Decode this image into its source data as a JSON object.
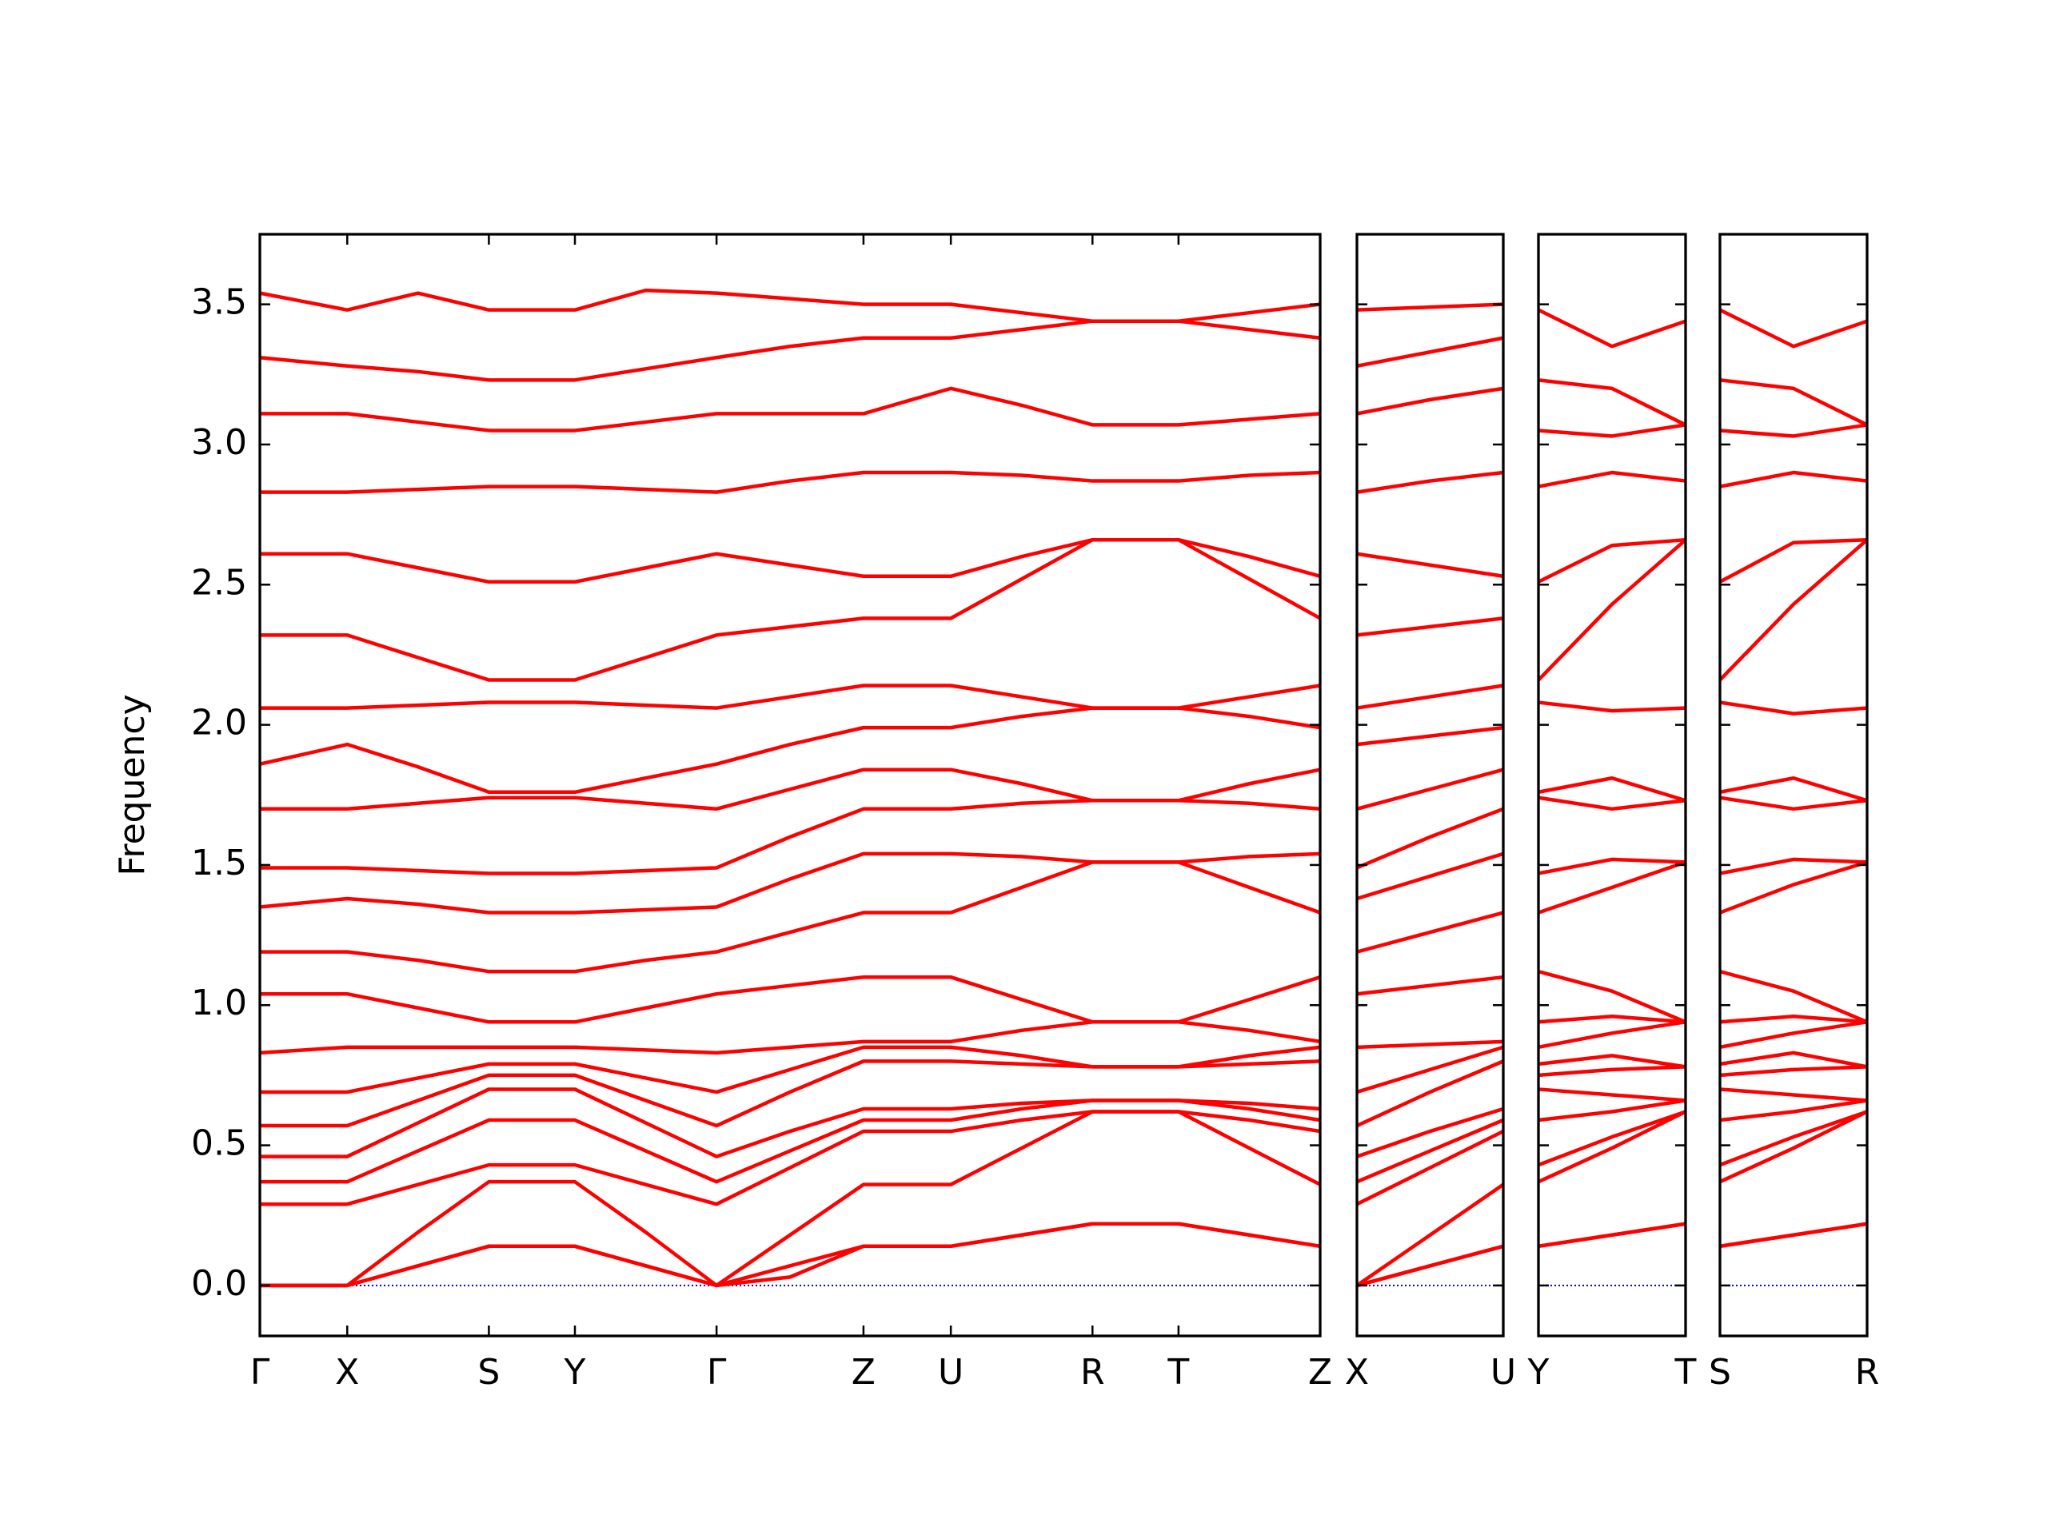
{
  "chart_data": [
    {
      "type": "line",
      "ylabel": "Frequency",
      "color": "#ff0000",
      "zero_line_color": "#0000cc",
      "x": [
        0,
        0.66,
        1.195,
        1.73,
        2.38,
        2.915,
        3.45,
        4.005,
        4.56,
        5.22,
        5.755,
        6.29,
        6.94,
        7.475,
        8.01
      ],
      "xlim": [
        0,
        8.01
      ],
      "xticks": [
        {
          "value": 0,
          "label": "Γ"
        },
        {
          "value": 0.66,
          "label": "X"
        },
        {
          "value": 1.73,
          "label": "S"
        },
        {
          "value": 2.38,
          "label": "Y"
        },
        {
          "value": 3.45,
          "label": "Γ"
        },
        {
          "value": 4.56,
          "label": "Z"
        },
        {
          "value": 5.22,
          "label": "U"
        },
        {
          "value": 6.29,
          "label": "R"
        },
        {
          "value": 6.94,
          "label": "T"
        },
        {
          "value": 8.01,
          "label": "Z"
        }
      ],
      "ylim": [
        -0.18,
        3.75
      ],
      "yticks": [
        {
          "value": 0,
          "label": "0.0"
        },
        0.5,
        {
          "value": 1,
          "label": "1.0"
        },
        1.5,
        {
          "value": 2,
          "label": "2.0"
        },
        2.5,
        {
          "value": 3,
          "label": "3.0"
        },
        3.5
      ],
      "series": [
        {
          "values": [
            0,
            0,
            0.07,
            0.14,
            0.14,
            0.07,
            0,
            0.07,
            0.14,
            0.14,
            0.18,
            0.22,
            0.22,
            0.18,
            0.14
          ]
        },
        {
          "values": [
            0,
            0,
            0.07,
            0.14,
            0.14,
            0.07,
            0,
            0.03,
            0.14,
            0.14,
            0.18,
            0.22,
            0.22,
            0.18,
            0.14
          ]
        },
        {
          "values": [
            0,
            0,
            0.19,
            0.37,
            0.37,
            0.19,
            0,
            0.18,
            0.36,
            0.36,
            0.49,
            0.62,
            0.62,
            0.49,
            0.36
          ]
        },
        {
          "values": [
            0.29,
            0.29,
            0.36,
            0.43,
            0.43,
            0.36,
            0.29,
            0.42,
            0.55,
            0.55,
            0.59,
            0.62,
            0.62,
            0.59,
            0.55
          ]
        },
        {
          "values": [
            0.37,
            0.37,
            0.48,
            0.59,
            0.59,
            0.48,
            0.37,
            0.48,
            0.59,
            0.59,
            0.63,
            0.66,
            0.66,
            0.63,
            0.59
          ]
        },
        {
          "values": [
            0.46,
            0.46,
            0.58,
            0.7,
            0.7,
            0.58,
            0.46,
            0.55,
            0.63,
            0.63,
            0.65,
            0.66,
            0.66,
            0.65,
            0.63
          ]
        },
        {
          "values": [
            0.57,
            0.57,
            0.66,
            0.75,
            0.75,
            0.66,
            0.57,
            0.69,
            0.8,
            0.8,
            0.79,
            0.78,
            0.78,
            0.79,
            0.8
          ]
        },
        {
          "values": [
            0.69,
            0.69,
            0.74,
            0.79,
            0.79,
            0.74,
            0.69,
            0.77,
            0.85,
            0.85,
            0.82,
            0.78,
            0.78,
            0.82,
            0.85
          ]
        },
        {
          "values": [
            0.83,
            0.85,
            0.85,
            0.85,
            0.85,
            0.84,
            0.83,
            0.85,
            0.87,
            0.87,
            0.91,
            0.94,
            0.94,
            0.91,
            0.87
          ]
        },
        {
          "values": [
            1.04,
            1.04,
            0.99,
            0.94,
            0.94,
            0.99,
            1.04,
            1.07,
            1.1,
            1.1,
            1.02,
            0.94,
            0.94,
            1.02,
            1.1
          ]
        },
        {
          "values": [
            1.19,
            1.19,
            1.16,
            1.12,
            1.12,
            1.16,
            1.19,
            1.26,
            1.33,
            1.33,
            1.42,
            1.51,
            1.51,
            1.42,
            1.33
          ]
        },
        {
          "values": [
            1.35,
            1.38,
            1.36,
            1.33,
            1.33,
            1.34,
            1.35,
            1.45,
            1.54,
            1.54,
            1.53,
            1.51,
            1.51,
            1.53,
            1.54
          ]
        },
        {
          "values": [
            1.49,
            1.49,
            1.48,
            1.47,
            1.47,
            1.48,
            1.49,
            1.6,
            1.7,
            1.7,
            1.72,
            1.73,
            1.73,
            1.72,
            1.7
          ]
        },
        {
          "values": [
            1.7,
            1.7,
            1.72,
            1.74,
            1.74,
            1.72,
            1.7,
            1.77,
            1.84,
            1.84,
            1.79,
            1.73,
            1.73,
            1.79,
            1.84
          ]
        },
        {
          "values": [
            1.86,
            1.93,
            1.85,
            1.76,
            1.76,
            1.81,
            1.86,
            1.93,
            1.99,
            1.99,
            2.03,
            2.06,
            2.06,
            2.03,
            1.99
          ]
        },
        {
          "values": [
            2.06,
            2.06,
            2.07,
            2.08,
            2.08,
            2.07,
            2.06,
            2.1,
            2.14,
            2.14,
            2.1,
            2.06,
            2.06,
            2.1,
            2.14
          ]
        },
        {
          "values": [
            2.32,
            2.32,
            2.24,
            2.16,
            2.16,
            2.24,
            2.32,
            2.35,
            2.38,
            2.38,
            2.52,
            2.66,
            2.66,
            2.52,
            2.38
          ]
        },
        {
          "values": [
            2.61,
            2.61,
            2.56,
            2.51,
            2.51,
            2.56,
            2.61,
            2.57,
            2.53,
            2.53,
            2.6,
            2.66,
            2.66,
            2.6,
            2.53
          ]
        },
        {
          "values": [
            2.83,
            2.83,
            2.84,
            2.85,
            2.85,
            2.84,
            2.83,
            2.87,
            2.9,
            2.9,
            2.89,
            2.87,
            2.87,
            2.89,
            2.9
          ]
        },
        {
          "values": [
            3.11,
            3.11,
            3.08,
            3.05,
            3.05,
            3.08,
            3.11,
            3.11,
            3.11,
            3.2,
            3.14,
            3.07,
            3.07,
            3.09,
            3.11
          ]
        },
        {
          "values": [
            3.31,
            3.28,
            3.26,
            3.23,
            3.23,
            3.27,
            3.31,
            3.35,
            3.38,
            3.38,
            3.41,
            3.44,
            3.44,
            3.41,
            3.38
          ]
        },
        {
          "values": [
            3.54,
            3.48,
            3.54,
            3.48,
            3.48,
            3.55,
            3.54,
            3.52,
            3.5,
            3.5,
            3.47,
            3.44,
            3.44,
            3.47,
            3.5
          ]
        }
      ]
    },
    {
      "type": "line",
      "color": "#ff0000",
      "zero_line_color": "#0000cc",
      "x": [
        0,
        0.55,
        1.1
      ],
      "xlim": [
        0,
        1.1
      ],
      "xticks": [
        {
          "value": 0,
          "label": "X"
        },
        {
          "value": 1.1,
          "label": "U"
        }
      ],
      "ylim": [
        -0.18,
        3.75
      ],
      "yticks": [
        0,
        0.5,
        1,
        1.5,
        2,
        2.5,
        3,
        3.5
      ],
      "series": [
        {
          "values": [
            0,
            0.07,
            0.14
          ]
        },
        {
          "values": [
            0,
            0.07,
            0.14
          ]
        },
        {
          "values": [
            0,
            0.18,
            0.36
          ]
        },
        {
          "values": [
            0.29,
            0.42,
            0.55
          ]
        },
        {
          "values": [
            0.37,
            0.48,
            0.59
          ]
        },
        {
          "values": [
            0.46,
            0.55,
            0.63
          ]
        },
        {
          "values": [
            0.57,
            0.69,
            0.8
          ]
        },
        {
          "values": [
            0.69,
            0.77,
            0.85
          ]
        },
        {
          "values": [
            0.85,
            0.86,
            0.87
          ]
        },
        {
          "values": [
            1.04,
            1.07,
            1.1
          ]
        },
        {
          "values": [
            1.19,
            1.26,
            1.33
          ]
        },
        {
          "values": [
            1.38,
            1.46,
            1.54
          ]
        },
        {
          "values": [
            1.49,
            1.6,
            1.7
          ]
        },
        {
          "values": [
            1.7,
            1.77,
            1.84
          ]
        },
        {
          "values": [
            1.93,
            1.96,
            1.99
          ]
        },
        {
          "values": [
            2.06,
            2.1,
            2.14
          ]
        },
        {
          "values": [
            2.32,
            2.35,
            2.38
          ]
        },
        {
          "values": [
            2.61,
            2.57,
            2.53
          ]
        },
        {
          "values": [
            2.83,
            2.87,
            2.9
          ]
        },
        {
          "values": [
            3.11,
            3.16,
            3.2
          ]
        },
        {
          "values": [
            3.28,
            3.33,
            3.38
          ]
        },
        {
          "values": [
            3.48,
            3.49,
            3.5
          ]
        }
      ]
    },
    {
      "type": "line",
      "color": "#ff0000",
      "zero_line_color": "#0000cc",
      "x": [
        0,
        0.555,
        1.11
      ],
      "xlim": [
        0,
        1.11
      ],
      "xticks": [
        {
          "value": 0,
          "label": "Y"
        },
        {
          "value": 1.11,
          "label": "T"
        }
      ],
      "ylim": [
        -0.18,
        3.75
      ],
      "yticks": [
        0,
        0.5,
        1,
        1.5,
        2,
        2.5,
        3,
        3.5
      ],
      "series": [
        {
          "values": [
            0.14,
            0.18,
            0.22
          ]
        },
        {
          "values": [
            0.14,
            0.18,
            0.22
          ]
        },
        {
          "values": [
            0.37,
            0.49,
            0.62
          ]
        },
        {
          "values": [
            0.43,
            0.53,
            0.62
          ]
        },
        {
          "values": [
            0.59,
            0.62,
            0.66
          ]
        },
        {
          "values": [
            0.7,
            0.68,
            0.66
          ]
        },
        {
          "values": [
            0.75,
            0.77,
            0.78
          ]
        },
        {
          "values": [
            0.79,
            0.82,
            0.78
          ]
        },
        {
          "values": [
            0.85,
            0.9,
            0.94
          ]
        },
        {
          "values": [
            0.94,
            0.96,
            0.94
          ]
        },
        {
          "values": [
            1.12,
            1.05,
            0.94
          ]
        },
        {
          "values": [
            1.33,
            1.42,
            1.51
          ]
        },
        {
          "values": [
            1.47,
            1.52,
            1.51
          ]
        },
        {
          "values": [
            1.74,
            1.7,
            1.73
          ]
        },
        {
          "values": [
            1.76,
            1.81,
            1.73
          ]
        },
        {
          "values": [
            2.08,
            2.05,
            2.06
          ]
        },
        {
          "values": [
            2.16,
            2.43,
            2.66
          ]
        },
        {
          "values": [
            2.51,
            2.64,
            2.66
          ]
        },
        {
          "values": [
            2.85,
            2.9,
            2.87
          ]
        },
        {
          "values": [
            3.05,
            3.03,
            3.07
          ]
        },
        {
          "values": [
            3.23,
            3.2,
            3.07
          ]
        },
        {
          "values": [
            3.48,
            3.35,
            3.44
          ]
        }
      ]
    },
    {
      "type": "line",
      "color": "#ff0000",
      "zero_line_color": "#0000cc",
      "x": [
        0,
        0.555,
        1.11
      ],
      "xlim": [
        0,
        1.11
      ],
      "xticks": [
        {
          "value": 0,
          "label": "S"
        },
        {
          "value": 1.11,
          "label": "R"
        }
      ],
      "ylim": [
        -0.18,
        3.75
      ],
      "yticks": [
        0,
        0.5,
        1,
        1.5,
        2,
        2.5,
        3,
        3.5
      ],
      "series": [
        {
          "values": [
            0.14,
            0.18,
            0.22
          ]
        },
        {
          "values": [
            0.14,
            0.18,
            0.22
          ]
        },
        {
          "values": [
            0.37,
            0.49,
            0.62
          ]
        },
        {
          "values": [
            0.43,
            0.53,
            0.62
          ]
        },
        {
          "values": [
            0.59,
            0.62,
            0.66
          ]
        },
        {
          "values": [
            0.7,
            0.68,
            0.66
          ]
        },
        {
          "values": [
            0.75,
            0.77,
            0.78
          ]
        },
        {
          "values": [
            0.79,
            0.83,
            0.78
          ]
        },
        {
          "values": [
            0.85,
            0.9,
            0.94
          ]
        },
        {
          "values": [
            0.94,
            0.96,
            0.94
          ]
        },
        {
          "values": [
            1.12,
            1.05,
            0.94
          ]
        },
        {
          "values": [
            1.33,
            1.43,
            1.51
          ]
        },
        {
          "values": [
            1.47,
            1.52,
            1.51
          ]
        },
        {
          "values": [
            1.74,
            1.7,
            1.73
          ]
        },
        {
          "values": [
            1.76,
            1.81,
            1.73
          ]
        },
        {
          "values": [
            2.08,
            2.04,
            2.06
          ]
        },
        {
          "values": [
            2.16,
            2.43,
            2.66
          ]
        },
        {
          "values": [
            2.51,
            2.65,
            2.66
          ]
        },
        {
          "values": [
            2.85,
            2.9,
            2.87
          ]
        },
        {
          "values": [
            3.05,
            3.03,
            3.07
          ]
        },
        {
          "values": [
            3.23,
            3.2,
            3.07
          ]
        },
        {
          "values": [
            3.48,
            3.35,
            3.44
          ]
        }
      ]
    }
  ]
}
